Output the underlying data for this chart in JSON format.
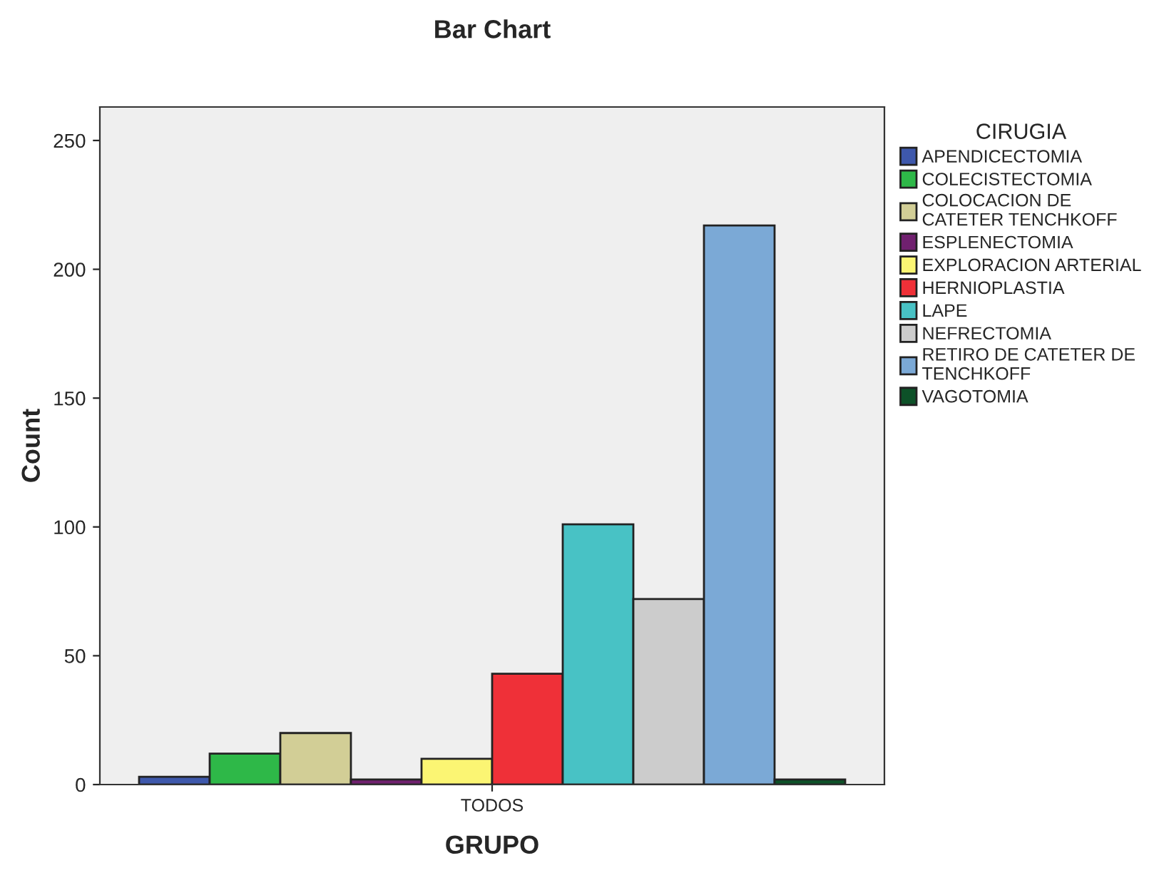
{
  "chart_data": {
    "type": "bar",
    "title": "Bar Chart",
    "xlabel": "GRUPO",
    "ylabel": "Count",
    "legend_title": "CIRUGIA",
    "categories": [
      "TODOS"
    ],
    "series": [
      {
        "name": "APENDICECTOMIA",
        "color": "#3e58ac",
        "values": [
          3
        ]
      },
      {
        "name": "COLECISTECTOMIA",
        "color": "#2eb848",
        "values": [
          12
        ]
      },
      {
        "name": "COLOCACION DE\nCATETER TENCHKOFF",
        "color": "#d2ce96",
        "values": [
          20
        ]
      },
      {
        "name": "ESPLENECTOMIA",
        "color": "#70206f",
        "values": [
          2
        ]
      },
      {
        "name": "EXPLORACION ARTERIAL",
        "color": "#fbf573",
        "values": [
          10
        ]
      },
      {
        "name": "HERNIOPLASTIA",
        "color": "#ef3038",
        "values": [
          43
        ]
      },
      {
        "name": "LAPE",
        "color": "#48c2c5",
        "values": [
          101
        ]
      },
      {
        "name": "NEFRECTOMIA",
        "color": "#cccccc",
        "values": [
          72
        ]
      },
      {
        "name": "RETIRO DE CATETER DE\nTENCHKOFF",
        "color": "#7ba9d6",
        "values": [
          217
        ]
      },
      {
        "name": "VAGOTOMIA",
        "color": "#0d5128",
        "values": [
          2
        ]
      }
    ],
    "ylim": [
      0,
      263
    ],
    "yticks": [
      0,
      50,
      100,
      150,
      200,
      250
    ],
    "grid": false,
    "legend": "right"
  }
}
